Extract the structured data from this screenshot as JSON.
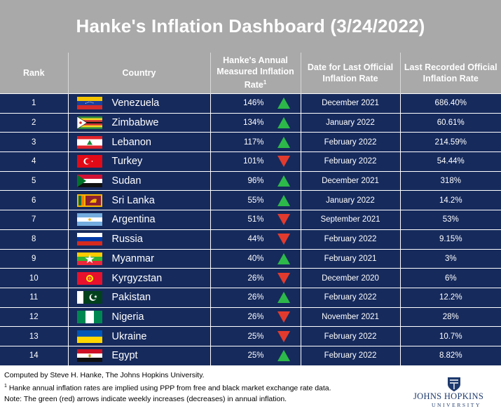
{
  "title": "Hanke's Inflation Dashboard (3/24/2022)",
  "columns": {
    "rank": "Rank",
    "country": "Country",
    "hanke_line1": "Hanke's Annual",
    "hanke_line2": "Measured Inflation",
    "hanke_line3": "Rate",
    "hanke_sup": "1",
    "date_line1": "Date for Last Official",
    "date_line2": "Inflation Rate",
    "official_line1": "Last Recorded Official",
    "official_line2": "Inflation Rate"
  },
  "colors": {
    "header_gray": "#a9a9a9",
    "row_navy": "#162a5c",
    "arrow_up": "#2db84a",
    "arrow_down": "#e23b2e"
  },
  "chart_data": {
    "type": "table",
    "title": "Hanke's Inflation Dashboard (3/24/2022)",
    "rows": [
      {
        "rank": "1",
        "country": "Venezuela",
        "flag": "venezuela",
        "hanke": "146%",
        "direction": "up",
        "date": "December 2021",
        "official": "686.40%"
      },
      {
        "rank": "2",
        "country": "Zimbabwe",
        "flag": "zimbabwe",
        "hanke": "134%",
        "direction": "up",
        "date": "January 2022",
        "official": "60.61%"
      },
      {
        "rank": "3",
        "country": "Lebanon",
        "flag": "lebanon",
        "hanke": "117%",
        "direction": "up",
        "date": "February 2022",
        "official": "214.59%"
      },
      {
        "rank": "4",
        "country": "Turkey",
        "flag": "turkey",
        "hanke": "101%",
        "direction": "down",
        "date": "February 2022",
        "official": "54.44%"
      },
      {
        "rank": "5",
        "country": "Sudan",
        "flag": "sudan",
        "hanke": "96%",
        "direction": "up",
        "date": "December 2021",
        "official": "318%"
      },
      {
        "rank": "6",
        "country": "Sri Lanka",
        "flag": "srilanka",
        "hanke": "55%",
        "direction": "up",
        "date": "January 2022",
        "official": "14.2%"
      },
      {
        "rank": "7",
        "country": "Argentina",
        "flag": "argentina",
        "hanke": "51%",
        "direction": "down",
        "date": "September 2021",
        "official": "53%"
      },
      {
        "rank": "8",
        "country": "Russia",
        "flag": "russia",
        "hanke": "44%",
        "direction": "down",
        "date": "February 2022",
        "official": "9.15%"
      },
      {
        "rank": "9",
        "country": "Myanmar",
        "flag": "myanmar",
        "hanke": "40%",
        "direction": "up",
        "date": "February 2021",
        "official": "3%"
      },
      {
        "rank": "10",
        "country": "Kyrgyzstan",
        "flag": "kyrgyzstan",
        "hanke": "26%",
        "direction": "down",
        "date": "December 2020",
        "official": "6%"
      },
      {
        "rank": "11",
        "country": "Pakistan",
        "flag": "pakistan",
        "hanke": "26%",
        "direction": "up",
        "date": "February 2022",
        "official": "12.2%"
      },
      {
        "rank": "12",
        "country": "Nigeria",
        "flag": "nigeria",
        "hanke": "26%",
        "direction": "down",
        "date": "November 2021",
        "official": "28%"
      },
      {
        "rank": "13",
        "country": "Ukraine",
        "flag": "ukraine",
        "hanke": "25%",
        "direction": "down",
        "date": "February 2022",
        "official": "10.7%"
      },
      {
        "rank": "14",
        "country": "Egypt",
        "flag": "egypt",
        "hanke": "25%",
        "direction": "up",
        "date": "February 2022",
        "official": "8.82%"
      }
    ]
  },
  "footer": {
    "line1": "Computed by Steve H. Hanke, The Johns Hopkins University.",
    "line2_sup": "1",
    "line2": " Hanke annual inflation rates are implied using PPP from free and black market exchange rate data.",
    "line3": "Note: The green (red) arrows indicate weekly increases (decreases) in annual inflation."
  },
  "logo": {
    "name": "JOHNS HOPKINS",
    "sub": "UNIVERSITY",
    "icon": "shield-icon"
  }
}
